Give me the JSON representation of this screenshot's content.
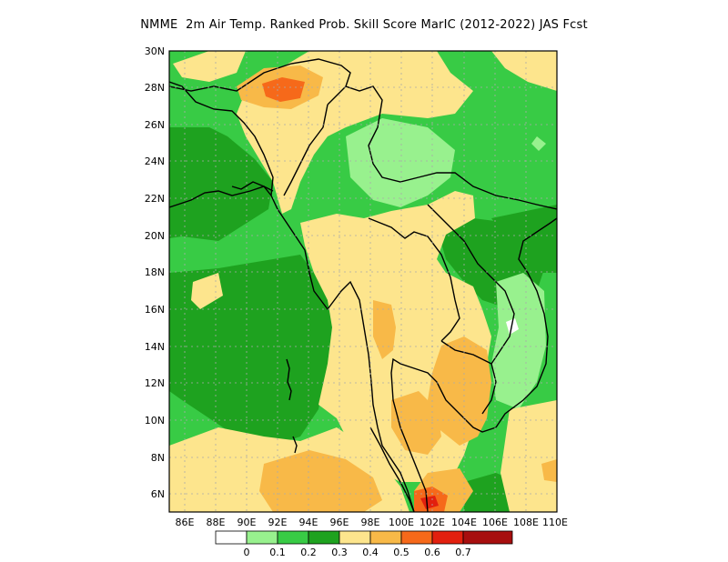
{
  "title": "NMME  2m Air Temp. Ranked Prob. Skill Score MarIC (2012-2022) JAS Fcst",
  "map": {
    "lon_range": [
      85,
      110
    ],
    "lat_range": [
      5,
      30
    ],
    "lat_ticks": [
      "30N",
      "28N",
      "26N",
      "24N",
      "22N",
      "20N",
      "18N",
      "16N",
      "14N",
      "12N",
      "10N",
      "8N",
      "6N"
    ],
    "lon_ticks": [
      "86E",
      "88E",
      "90E",
      "92E",
      "94E",
      "96E",
      "98E",
      "100E",
      "102E",
      "104E",
      "106E",
      "108E",
      "110E"
    ]
  },
  "colorbar": {
    "colors": [
      "#ffffff",
      "#98f18e",
      "#38cb45",
      "#1ea21f",
      "#fde58d",
      "#f8b948",
      "#f6691a",
      "#e2200e",
      "#a70e0e"
    ],
    "labels": [
      "0",
      "0.1",
      "0.2",
      "0.3",
      "0.4",
      "0.5",
      "0.6",
      "0.7"
    ]
  }
}
